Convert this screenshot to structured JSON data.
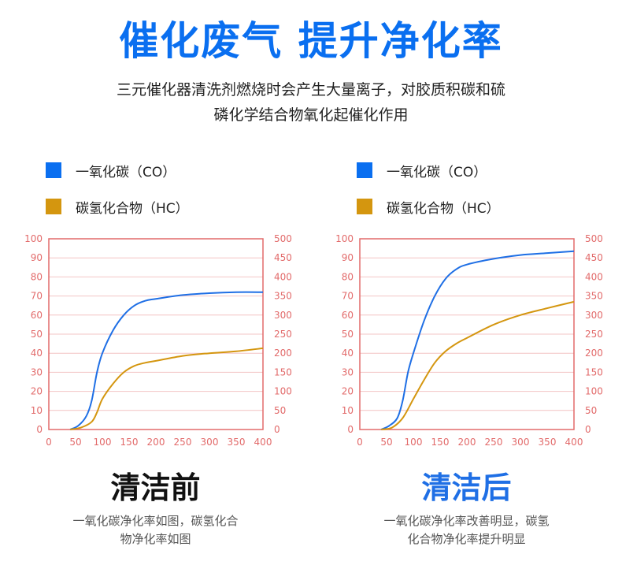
{
  "headline": "催化废气 提升净化率",
  "subtitle_line1": "三元催化器清洗剂燃烧时会产生大量离子，对胶质积碳和硫",
  "subtitle_line2": "磷化学结合物氧化起催化作用",
  "colors": {
    "co": "#1f6fe5",
    "hc": "#d4960f",
    "axis": "#e26a6a",
    "grid": "#f3c4c4",
    "headline": "#0a6ff0",
    "title_after": "#1f6fe5",
    "title_before": "#111111"
  },
  "legend": [
    {
      "label": "一氧化碳（CO）",
      "icon": "blue-square",
      "color": "#0a6ff0"
    },
    {
      "label": "碳氢化合物（HC）",
      "icon": "gold-square",
      "color": "#d4960f"
    }
  ],
  "panels": [
    {
      "title": "清洁前",
      "desc_line1": "一氧化碳净化率如图，碳氢化合",
      "desc_line2": "物净化率如图"
    },
    {
      "title": "清洁后",
      "desc_line1": "一氧化碳净化率改善明显，碳氢",
      "desc_line2": "化合物净化率提升明显"
    }
  ],
  "chart_data": [
    {
      "type": "line",
      "title": "清洁前",
      "x_ticks": [
        "0",
        "50",
        "100",
        "150",
        "200",
        "250",
        "300",
        "350",
        "400"
      ],
      "y_left_ticks": [
        "0",
        "10",
        "20",
        "30",
        "40",
        "50",
        "60",
        "70",
        "80",
        "90",
        "100"
      ],
      "y_right_ticks": [
        "0",
        "50",
        "100",
        "150",
        "200",
        "250",
        "300",
        "350",
        "400",
        "450",
        "500"
      ],
      "xlim": [
        0,
        400
      ],
      "ylim_left": [
        0,
        100
      ],
      "ylim_right": [
        0,
        500
      ],
      "grid": true,
      "series": [
        {
          "name": "一氧化碳（CO）",
          "axis": "left",
          "color": "#1f6fe5",
          "x": [
            40,
            55,
            70,
            80,
            90,
            100,
            120,
            140,
            160,
            180,
            200,
            250,
            300,
            350,
            400
          ],
          "y": [
            0,
            2,
            7,
            15,
            30,
            40,
            52,
            60,
            65,
            67.5,
            68.5,
            70.5,
            71.5,
            72,
            72
          ]
        },
        {
          "name": "碳氢化合物（HC）",
          "axis": "right",
          "color": "#d4960f",
          "x": [
            40,
            60,
            80,
            90,
            100,
            120,
            140,
            160,
            180,
            200,
            250,
            300,
            350,
            400
          ],
          "y": [
            0,
            5,
            20,
            45,
            80,
            120,
            150,
            167,
            175,
            180,
            193,
            200,
            205,
            213
          ]
        }
      ]
    },
    {
      "type": "line",
      "title": "清洁后",
      "x_ticks": [
        "0",
        "50",
        "100",
        "150",
        "200",
        "250",
        "300",
        "350",
        "400"
      ],
      "y_left_ticks": [
        "0",
        "10",
        "20",
        "30",
        "40",
        "50",
        "60",
        "70",
        "80",
        "90",
        "100"
      ],
      "y_right_ticks": [
        "0",
        "50",
        "100",
        "150",
        "200",
        "250",
        "300",
        "350",
        "400",
        "450",
        "500"
      ],
      "xlim": [
        0,
        400
      ],
      "ylim_left": [
        0,
        100
      ],
      "ylim_right": [
        0,
        500
      ],
      "grid": true,
      "series": [
        {
          "name": "一氧化碳（CO）",
          "axis": "left",
          "color": "#1f6fe5",
          "x": [
            40,
            55,
            70,
            80,
            90,
            100,
            120,
            140,
            160,
            180,
            200,
            250,
            300,
            350,
            400
          ],
          "y": [
            0,
            2,
            6,
            15,
            30,
            40,
            57,
            70,
            79,
            84,
            86.5,
            89.5,
            91.5,
            92.5,
            93.5
          ]
        },
        {
          "name": "碳氢化合物（HC）",
          "axis": "right",
          "color": "#d4960f",
          "x": [
            40,
            60,
            80,
            100,
            120,
            140,
            160,
            180,
            200,
            250,
            300,
            350,
            400
          ],
          "y": [
            0,
            5,
            30,
            80,
            130,
            175,
            205,
            225,
            240,
            275,
            300,
            318,
            335
          ]
        }
      ]
    }
  ]
}
